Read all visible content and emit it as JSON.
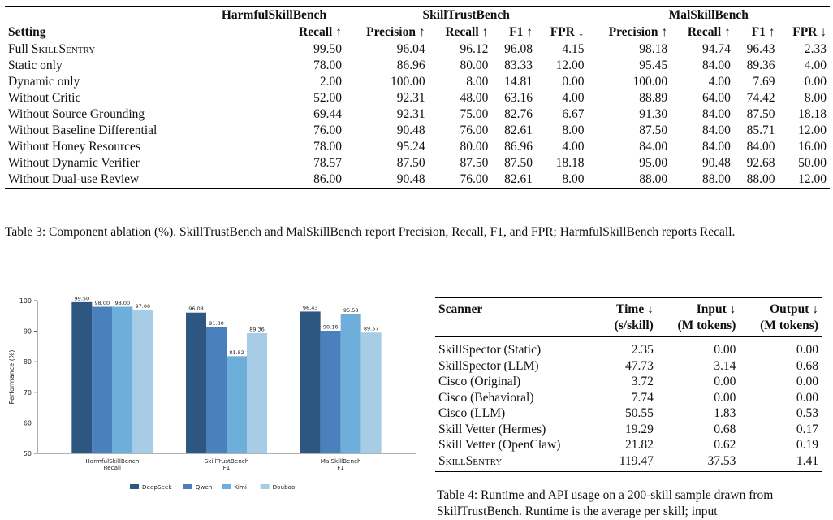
{
  "table3": {
    "groups": [
      "HarmfulSkillBench",
      "SkillTrustBench",
      "MalSkillBench"
    ],
    "setting_header": "Setting",
    "columns": [
      "Recall ↑",
      "Precision ↑",
      "Recall ↑",
      "F1 ↑",
      "FPR ↓",
      "Precision ↑",
      "Recall ↑",
      "F1 ↑",
      "FPR ↓"
    ],
    "rows": [
      {
        "pre": "Full ",
        "name": "SkillSentry",
        "values": [
          "99.50",
          "96.04",
          "96.12",
          "96.08",
          "4.15",
          "98.18",
          "94.74",
          "96.43",
          "2.33"
        ]
      },
      {
        "pre": "",
        "name": "Static only",
        "values": [
          "78.00",
          "86.96",
          "80.00",
          "83.33",
          "12.00",
          "95.45",
          "84.00",
          "89.36",
          "4.00"
        ]
      },
      {
        "pre": "",
        "name": "Dynamic only",
        "values": [
          "2.00",
          "100.00",
          "8.00",
          "14.81",
          "0.00",
          "100.00",
          "4.00",
          "7.69",
          "0.00"
        ]
      },
      {
        "pre": "",
        "name": "Without Critic",
        "values": [
          "52.00",
          "92.31",
          "48.00",
          "63.16",
          "4.00",
          "88.89",
          "64.00",
          "74.42",
          "8.00"
        ]
      },
      {
        "pre": "",
        "name": "Without Source Grounding",
        "values": [
          "69.44",
          "92.31",
          "75.00",
          "82.76",
          "6.67",
          "91.30",
          "84.00",
          "87.50",
          "18.18"
        ]
      },
      {
        "pre": "",
        "name": "Without Baseline Differential",
        "values": [
          "76.00",
          "90.48",
          "76.00",
          "82.61",
          "8.00",
          "87.50",
          "84.00",
          "85.71",
          "12.00"
        ]
      },
      {
        "pre": "",
        "name": "Without Honey Resources",
        "values": [
          "78.00",
          "95.24",
          "80.00",
          "86.96",
          "4.00",
          "84.00",
          "84.00",
          "84.00",
          "16.00"
        ]
      },
      {
        "pre": "",
        "name": "Without Dynamic Verifier",
        "values": [
          "78.57",
          "87.50",
          "87.50",
          "87.50",
          "18.18",
          "95.00",
          "90.48",
          "92.68",
          "50.00"
        ]
      },
      {
        "pre": "",
        "name": "Without Dual-use Review",
        "values": [
          "86.00",
          "90.48",
          "76.00",
          "82.61",
          "8.00",
          "88.00",
          "88.00",
          "88.00",
          "12.00"
        ]
      }
    ],
    "caption": "Table 3: Component ablation (%). SkillTrustBench and MalSkillBench report Precision, Recall, F1, and FPR; HarmfulSkillBench reports Recall."
  },
  "chart_data": {
    "type": "bar",
    "categories": [
      "HarmfulSkillBench\nRecall",
      "SkillTrustBench\nF1",
      "MalSkillBench\nF1"
    ],
    "series": [
      {
        "name": "DeepSeek",
        "values": [
          99.5,
          96.08,
          96.43
        ],
        "color": "#2d5680"
      },
      {
        "name": "Qwen",
        "values": [
          98.0,
          91.3,
          90.16
        ],
        "color": "#4a80bb"
      },
      {
        "name": "Kimi",
        "values": [
          98.0,
          81.82,
          95.58
        ],
        "color": "#6eaedb"
      },
      {
        "name": "Doubao",
        "values": [
          97.0,
          89.36,
          89.57
        ],
        "color": "#a7cde6"
      }
    ],
    "ylabel": "Performance (%)",
    "ylim": [
      50,
      100
    ],
    "yticks": [
      50,
      60,
      70,
      80,
      90,
      100
    ],
    "legend_position": "bottom",
    "grid": false
  },
  "table4": {
    "headers": [
      {
        "line1": "Scanner",
        "line2": ""
      },
      {
        "line1": "Time ↓",
        "line2": "(s/skill)"
      },
      {
        "line1": "Input ↓",
        "line2": "(M tokens)"
      },
      {
        "line1": "Output ↓",
        "line2": "(M tokens)"
      }
    ],
    "rows": [
      {
        "name": "SkillSpector (Static)",
        "values": [
          "2.35",
          "0.00",
          "0.00"
        ]
      },
      {
        "name": "SkillSpector (LLM)",
        "values": [
          "47.73",
          "3.14",
          "0.68"
        ]
      },
      {
        "name": "Cisco (Original)",
        "values": [
          "3.72",
          "0.00",
          "0.00"
        ]
      },
      {
        "name": "Cisco (Behavioral)",
        "values": [
          "7.74",
          "0.00",
          "0.00"
        ]
      },
      {
        "name": "Cisco (LLM)",
        "values": [
          "50.55",
          "1.83",
          "0.53"
        ]
      },
      {
        "name": "Skill Vetter (Hermes)",
        "values": [
          "19.29",
          "0.68",
          "0.17"
        ]
      },
      {
        "name": "Skill Vetter (OpenClaw)",
        "values": [
          "21.82",
          "0.62",
          "0.19"
        ]
      },
      {
        "name": "SkillSentry",
        "values": [
          "119.47",
          "37.53",
          "1.41"
        ]
      }
    ],
    "caption": "Table 4: Runtime and API usage on a 200-skill sample drawn from SkillTrustBench. Runtime is the average per skill; input"
  }
}
